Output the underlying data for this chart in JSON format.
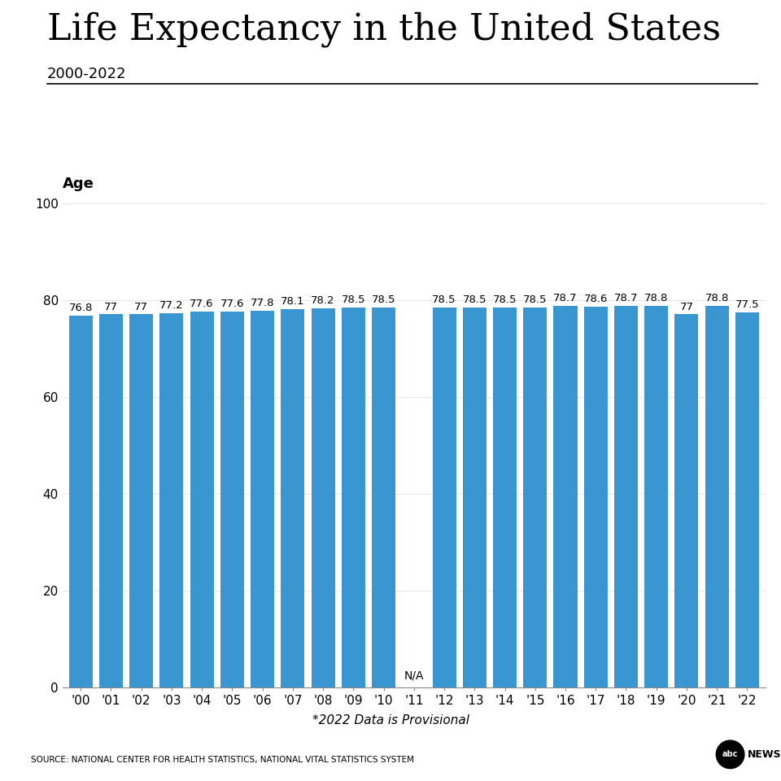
{
  "title": "Life Expectancy in the United States",
  "subtitle": "2000-2022",
  "ylabel": "Age",
  "xlabel_note": "*2022 Data is Provisional",
  "source": "SOURCE: NATIONAL CENTER FOR HEALTH STATISTICS, NATIONAL VITAL STATISTICS SYSTEM",
  "years": [
    "'00",
    "'01",
    "'02",
    "'03",
    "'04",
    "'05",
    "'06",
    "'07",
    "'08",
    "'09",
    "'10",
    "'11",
    "'12",
    "'13",
    "'14",
    "'15",
    "'16",
    "'17",
    "'18",
    "'19",
    "'20",
    "'21",
    "'22"
  ],
  "values": [
    76.8,
    77.0,
    77.0,
    77.2,
    77.6,
    77.6,
    77.8,
    78.1,
    78.2,
    78.5,
    78.5,
    null,
    78.5,
    78.5,
    78.5,
    78.5,
    78.7,
    78.6,
    78.7,
    78.8,
    77.0,
    78.8,
    77.5
  ],
  "bar_color": "#3a96d0",
  "background_color": "#ffffff",
  "ylim": [
    0,
    100
  ],
  "yticks": [
    0,
    20,
    40,
    60,
    80,
    100
  ],
  "title_fontsize": 32,
  "subtitle_fontsize": 13,
  "ylabel_fontsize": 13,
  "tick_fontsize": 11,
  "bar_label_fontsize": 9.5,
  "na_label": "N/A"
}
